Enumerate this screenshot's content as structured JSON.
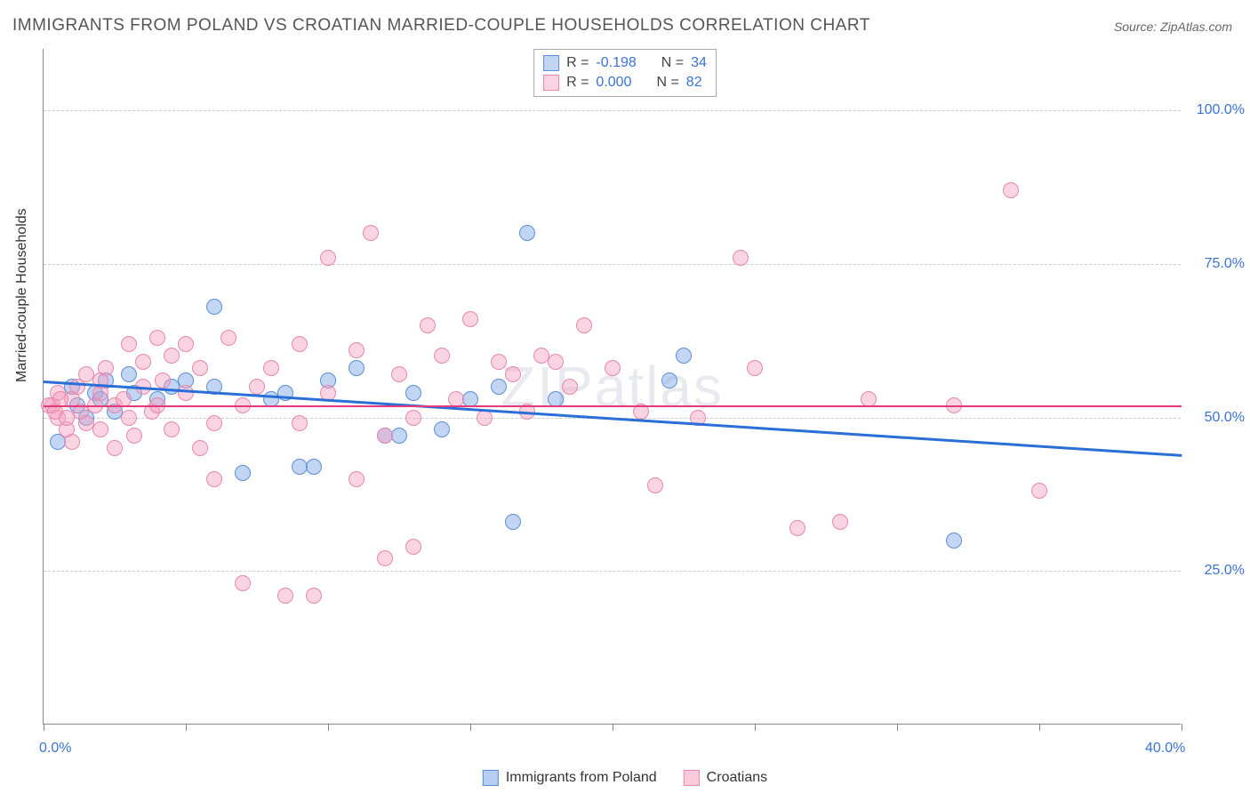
{
  "title": "IMMIGRANTS FROM POLAND VS CROATIAN MARRIED-COUPLE HOUSEHOLDS CORRELATION CHART",
  "source": "Source: ZipAtlas.com",
  "watermark": "ZIPatlas",
  "y_axis_label": "Married-couple Households",
  "chart": {
    "type": "scatter",
    "background_color": "#ffffff",
    "grid_color": "#cccccc",
    "axis_color": "#888888",
    "xlim": [
      0,
      40
    ],
    "ylim": [
      0,
      110
    ],
    "x_ticks": [
      0,
      5,
      10,
      15,
      20,
      25,
      30,
      35,
      40
    ],
    "x_tick_labels": {
      "0": "0.0%",
      "40": "40.0%"
    },
    "y_gridlines": [
      25,
      50,
      75,
      100
    ],
    "y_tick_labels": {
      "25": "25.0%",
      "50": "50.0%",
      "75": "75.0%",
      "100": "100.0%"
    },
    "tick_label_color": "#3b72d4",
    "tick_label_fontsize": 16,
    "marker_radius": 9,
    "marker_stroke_width": 1.5,
    "series": [
      {
        "name": "Immigrants from Poland",
        "fill_color": "rgba(120,165,230,0.45)",
        "stroke_color": "#5a8ed6",
        "R": "-0.198",
        "N": "34",
        "trend": {
          "y_at_x0": 56,
          "y_at_x40": 44,
          "color": "#2a6fd6",
          "width": 2.5
        },
        "points": [
          [
            0.5,
            46
          ],
          [
            1.0,
            55
          ],
          [
            1.2,
            52
          ],
          [
            1.5,
            50
          ],
          [
            1.8,
            54
          ],
          [
            2.0,
            53
          ],
          [
            2.2,
            56
          ],
          [
            2.5,
            51
          ],
          [
            3.0,
            57
          ],
          [
            3.2,
            54
          ],
          [
            4.0,
            53
          ],
          [
            4.5,
            55
          ],
          [
            5.0,
            56
          ],
          [
            6.0,
            55
          ],
          [
            6.0,
            68
          ],
          [
            7.0,
            41
          ],
          [
            8.0,
            53
          ],
          [
            8.5,
            54
          ],
          [
            9.0,
            42
          ],
          [
            9.5,
            42
          ],
          [
            10.0,
            56
          ],
          [
            11.0,
            58
          ],
          [
            12.0,
            47
          ],
          [
            12.5,
            47
          ],
          [
            13.0,
            54
          ],
          [
            14.0,
            48
          ],
          [
            15.0,
            53
          ],
          [
            16.0,
            55
          ],
          [
            16.5,
            33
          ],
          [
            17.0,
            80
          ],
          [
            18.0,
            53
          ],
          [
            22.0,
            56
          ],
          [
            22.5,
            60
          ],
          [
            32.0,
            30
          ]
        ]
      },
      {
        "name": "Croatians",
        "fill_color": "rgba(245,160,190,0.45)",
        "stroke_color": "#e986ad",
        "R": "0.000",
        "N": "82",
        "trend": {
          "y_at_x0": 52,
          "y_at_x40": 52,
          "color": "#e23a7a",
          "width": 2
        },
        "points": [
          [
            0.3,
            52
          ],
          [
            0.5,
            50
          ],
          [
            0.5,
            54
          ],
          [
            0.8,
            48
          ],
          [
            1.0,
            53
          ],
          [
            1.0,
            46
          ],
          [
            1.2,
            55
          ],
          [
            1.3,
            51
          ],
          [
            1.5,
            57
          ],
          [
            1.5,
            49
          ],
          [
            1.8,
            52
          ],
          [
            2.0,
            54
          ],
          [
            2.0,
            56
          ],
          [
            2.0,
            48
          ],
          [
            2.2,
            58
          ],
          [
            2.5,
            52
          ],
          [
            2.5,
            45
          ],
          [
            2.8,
            53
          ],
          [
            3.0,
            62
          ],
          [
            3.0,
            50
          ],
          [
            3.2,
            47
          ],
          [
            3.5,
            55
          ],
          [
            3.5,
            59
          ],
          [
            3.8,
            51
          ],
          [
            4.0,
            63
          ],
          [
            4.0,
            52
          ],
          [
            4.2,
            56
          ],
          [
            4.5,
            60
          ],
          [
            4.5,
            48
          ],
          [
            5.0,
            62
          ],
          [
            5.0,
            54
          ],
          [
            5.5,
            45
          ],
          [
            5.5,
            58
          ],
          [
            6.0,
            49
          ],
          [
            6.0,
            40
          ],
          [
            6.5,
            63
          ],
          [
            7.0,
            52
          ],
          [
            7.0,
            23
          ],
          [
            7.5,
            55
          ],
          [
            8.0,
            58
          ],
          [
            8.5,
            21
          ],
          [
            9.0,
            62
          ],
          [
            9.0,
            49
          ],
          [
            9.5,
            21
          ],
          [
            10.0,
            76
          ],
          [
            10.0,
            54
          ],
          [
            11.0,
            40
          ],
          [
            11.0,
            61
          ],
          [
            11.5,
            80
          ],
          [
            12.0,
            47
          ],
          [
            12.0,
            27
          ],
          [
            12.5,
            57
          ],
          [
            13.0,
            50
          ],
          [
            13.0,
            29
          ],
          [
            13.5,
            65
          ],
          [
            14.0,
            60
          ],
          [
            14.5,
            53
          ],
          [
            15.0,
            66
          ],
          [
            15.5,
            50
          ],
          [
            16.0,
            59
          ],
          [
            16.5,
            57
          ],
          [
            17.0,
            51
          ],
          [
            17.5,
            60
          ],
          [
            18.0,
            59
          ],
          [
            18.5,
            55
          ],
          [
            19.0,
            65
          ],
          [
            20.0,
            58
          ],
          [
            21.0,
            51
          ],
          [
            21.5,
            39
          ],
          [
            23.0,
            50
          ],
          [
            24.5,
            76
          ],
          [
            25.0,
            58
          ],
          [
            26.5,
            32
          ],
          [
            28.0,
            33
          ],
          [
            29.0,
            53
          ],
          [
            32.0,
            52
          ],
          [
            34.0,
            87
          ],
          [
            35.0,
            38
          ],
          [
            0.2,
            52
          ],
          [
            0.4,
            51
          ],
          [
            0.6,
            53
          ],
          [
            0.8,
            50
          ]
        ]
      }
    ]
  },
  "legend_bottom": [
    {
      "label": "Immigrants from Poland",
      "fill": "rgba(120,165,230,0.55)",
      "stroke": "#5a8ed6"
    },
    {
      "label": "Croatians",
      "fill": "rgba(245,160,190,0.55)",
      "stroke": "#e986ad"
    }
  ]
}
